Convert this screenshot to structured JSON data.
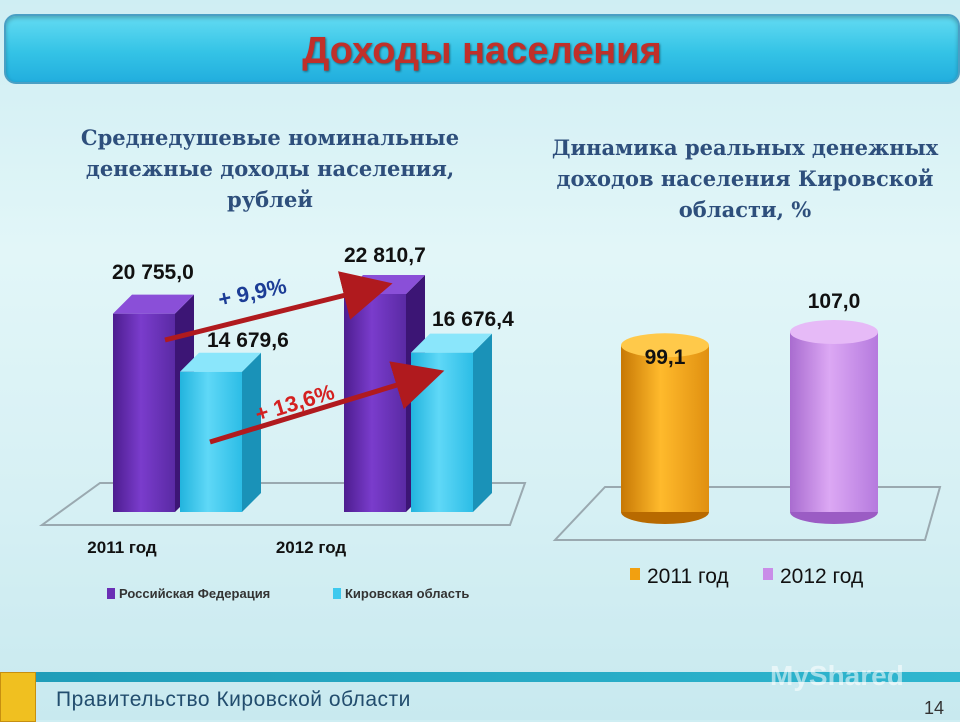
{
  "page": {
    "title": "Доходы населения",
    "footer": "Правительство Кировской области",
    "page_number": "14",
    "watermark": "MyShared"
  },
  "colors": {
    "title": "#c0302a",
    "rf": "#6a2fb5",
    "kirov": "#3ec9ee",
    "y2011": "#f2a010",
    "y2012": "#c98de8",
    "arrow": "#b01a1e"
  },
  "chart_data": [
    {
      "type": "bar",
      "title": "Среднедушевые номинальные денежные доходы населения, рублей",
      "categories": [
        "2011 год",
        "2012 год"
      ],
      "series": [
        {
          "name": "Российская Федерация",
          "values": [
            20755.0,
            22810.7
          ],
          "labels": [
            "20 755,0",
            "22 810,7"
          ]
        },
        {
          "name": "Кировская область",
          "values": [
            14679.6,
            16676.4
          ],
          "labels": [
            "14 679,6",
            "16 676,4"
          ]
        }
      ],
      "annotations": [
        "+ 9,9%",
        "+ 13,6%"
      ],
      "legend": "bottom"
    },
    {
      "type": "bar",
      "title": "Динамика реальных денежных доходов населения Кировской области, %",
      "categories": [
        "2011 год",
        "2012 год"
      ],
      "values": [
        99.1,
        107.0
      ],
      "labels": [
        "99,1",
        "107,0"
      ],
      "legend": "bottom"
    }
  ]
}
